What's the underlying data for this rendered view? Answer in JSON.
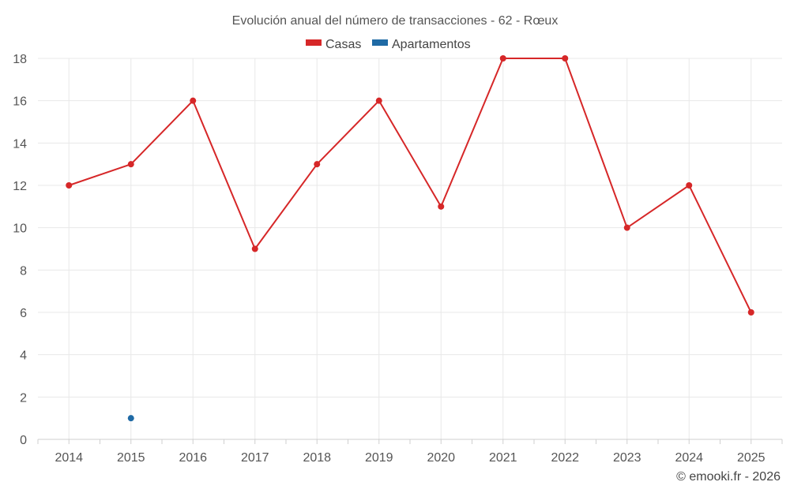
{
  "chart_data": {
    "type": "line",
    "title": "Evolución anual del número de transacciones - 62 - Rœux",
    "categories": [
      "2014",
      "2015",
      "2016",
      "2017",
      "2018",
      "2019",
      "2020",
      "2021",
      "2022",
      "2023",
      "2024",
      "2025"
    ],
    "series": [
      {
        "name": "Casas",
        "color": "#d62728",
        "values": [
          12,
          13,
          16,
          9,
          13,
          16,
          11,
          18,
          18,
          10,
          12,
          6
        ]
      },
      {
        "name": "Apartamentos",
        "color": "#1f6aa5",
        "values": [
          null,
          1,
          null,
          null,
          null,
          null,
          null,
          null,
          null,
          null,
          null,
          null
        ]
      }
    ],
    "ylim": [
      0,
      18
    ],
    "yticks": [
      0,
      2,
      4,
      6,
      8,
      10,
      12,
      14,
      16,
      18
    ],
    "xlabel": "",
    "ylabel": "",
    "grid": true,
    "legend_position": "top-center"
  },
  "credit": "© emooki.fr - 2026"
}
